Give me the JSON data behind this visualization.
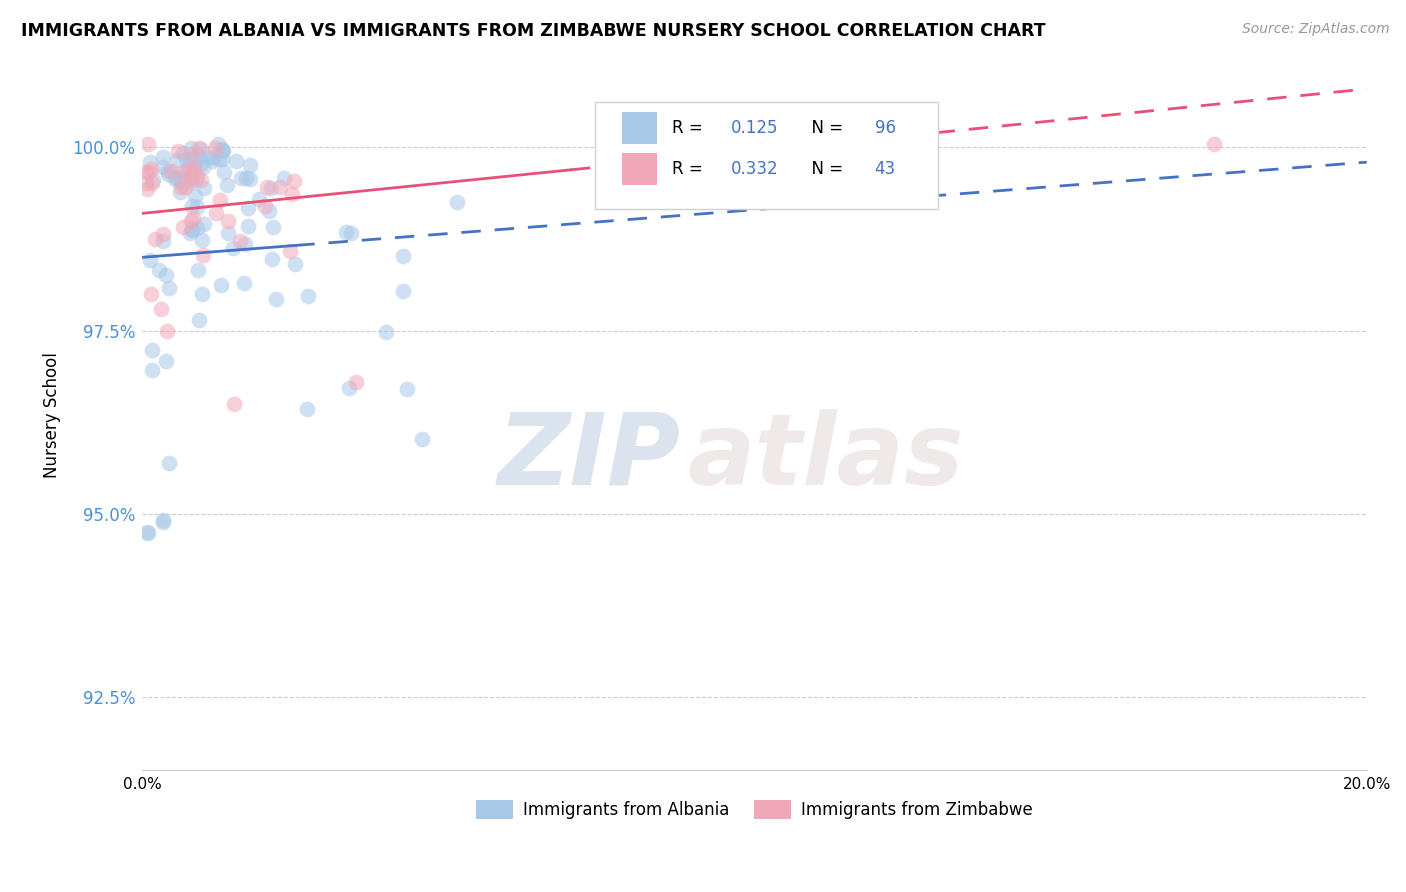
{
  "title": "IMMIGRANTS FROM ALBANIA VS IMMIGRANTS FROM ZIMBABWE NURSERY SCHOOL CORRELATION CHART",
  "source": "Source: ZipAtlas.com",
  "ylabel": "Nursery School",
  "yticks": [
    92.5,
    95.0,
    97.5,
    100.0
  ],
  "ytick_labels": [
    "92.5%",
    "95.0%",
    "97.5%",
    "100.0%"
  ],
  "xlim": [
    0.0,
    20.0
  ],
  "ylim": [
    91.5,
    101.2
  ],
  "albania_color": "#a8c8e8",
  "zimbabwe_color": "#f0a8b8",
  "albania_line_color": "#4472c4",
  "zimbabwe_line_color": "#e8507a",
  "R_albania": 0.125,
  "N_albania": 96,
  "R_zimbabwe": 0.332,
  "N_zimbabwe": 43,
  "watermark_zip": "ZIP",
  "watermark_atlas": "atlas",
  "legend_R_color": "#4472c4",
  "legend_N_color": "#4472c4"
}
